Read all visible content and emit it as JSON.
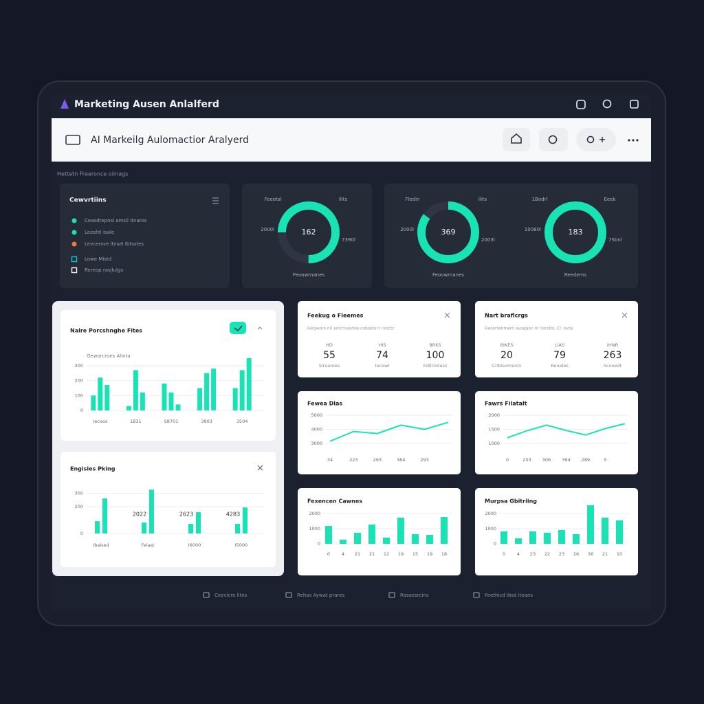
{
  "app": {
    "title": "Marketing Ausen Anlalferd"
  },
  "header": {
    "title": "AI Markeilg Aulomactior Aralyerd"
  },
  "section_label": "Hettetn Freeronce oiinags",
  "list_card": {
    "title": "Cewvrtiins",
    "items": [
      "Ceasdtepnsl amsil Itnatos",
      "Leesfel Isale",
      "Levcersve ltnsel Ibtsstes",
      "Lowe Mistd",
      "Rereop rasjlulgs"
    ]
  },
  "donuts": [
    {
      "value": 162,
      "progress": 75,
      "color": "#19e3b5",
      "labels": [
        "Feeotsl",
        "Ilits",
        "2000l",
        "7390l"
      ],
      "caption": "Feoowrnanes"
    },
    {
      "value": 369,
      "progress": 85,
      "color": "#19e3b5",
      "labels": [
        "Fledin",
        "Ilits",
        "2000l",
        "2003l"
      ],
      "caption": "Feoowrnanes"
    },
    {
      "value": 183,
      "progress": 100,
      "color": "#19e3b5",
      "labels": [
        "1Bodrl",
        "Eeek",
        "10080l",
        "7Sbnl"
      ],
      "caption": "Reedems"
    }
  ],
  "stat_cards": [
    {
      "title": "Feekug o Fleemes",
      "subtitle": "Fecpeors nli anlcrraiorles cobosts ri riioctc",
      "stats": [
        {
          "label": "HD",
          "value": 55,
          "caption": "Siruaroes"
        },
        {
          "label": "HIS",
          "value": 74,
          "caption": "Iecowl"
        },
        {
          "label": "BRKS",
          "value": 100,
          "caption": "Edllciotess"
        }
      ]
    },
    {
      "title": "Nart braflcrgs",
      "subtitle": "Fiesorrenmern avoqaon nl riorotls, Cl. ovos",
      "stats": [
        {
          "label": "BIKES",
          "value": 20,
          "caption": "Cribisoments"
        },
        {
          "label": "LIAS",
          "value": 79,
          "caption": "Reneles"
        },
        {
          "label": "IHNR",
          "value": 263,
          "caption": "Scooedt"
        }
      ]
    }
  ],
  "charts": [
    {
      "type": "bar",
      "title": "Nalre Porcshnghe Fites",
      "subtitle": "Geworcroes Alinta",
      "categories": [
        "Iecoos",
        "1B31",
        "S8701",
        "3903",
        "3504"
      ],
      "ylim": [
        0,
        350
      ],
      "yticks": [
        0,
        100,
        200,
        300
      ],
      "grid": true,
      "series": [
        {
          "color": "#19e3b5",
          "values": [
            100,
            30,
            180,
            150,
            150
          ]
        },
        {
          "color": "#19e3b5",
          "values": [
            220,
            270,
            120,
            250,
            270
          ]
        },
        {
          "color": "#19e3b5",
          "values": [
            170,
            120,
            40,
            280,
            350
          ]
        }
      ]
    },
    {
      "type": "bar",
      "title": "Engisies Pking",
      "categories": [
        "Ibalsed",
        "Felast",
        "I6000",
        "I5000"
      ],
      "annotations": [
        "2022",
        "2623",
        "4283"
      ],
      "ylim": [
        0,
        370
      ],
      "yticks": [
        0,
        200,
        300
      ],
      "grid": true,
      "series": [
        {
          "color": "#19e3b5",
          "values": [
            92,
            82,
            72,
            72
          ]
        },
        {
          "color": "#19e3b5",
          "values": [
            262,
            328,
            159,
            195
          ]
        }
      ]
    },
    {
      "type": "line",
      "title": "Fewea Dlas",
      "categories": [
        "34",
        "223",
        "293",
        "364",
        "293",
        null
      ],
      "values": [
        3150,
        3850,
        3700,
        4300,
        4000,
        4500
      ],
      "color": "#19e3b5",
      "ylim": [
        2800,
        5200
      ],
      "yticks": [
        3000,
        4000,
        5000
      ],
      "grid": true
    },
    {
      "type": "line",
      "title": "Fawrs Filatalt",
      "categories": [
        "0",
        "253",
        "306",
        "394",
        "289",
        "5",
        null
      ],
      "values": [
        1200,
        1450,
        1650,
        1460,
        1300,
        1530,
        1700
      ],
      "color": "#19e3b5",
      "ylim": [
        900,
        2100
      ],
      "yticks": [
        1000,
        1500,
        2000
      ],
      "grid": true
    },
    {
      "type": "bar",
      "title": "Fexencen Cawnes",
      "categories": [
        "0",
        "4",
        "21",
        "21",
        "12",
        "19",
        "15",
        "19",
        "18"
      ],
      "values": [
        1180,
        270,
        730,
        1270,
        410,
        1730,
        640,
        590,
        1770
      ],
      "color": "#19e3b5",
      "ylim": [
        0,
        2000
      ],
      "yticks": [
        0,
        1000,
        2000
      ],
      "grid": true
    },
    {
      "type": "bar",
      "title": "Murpsa Gbitriing",
      "categories": [
        "0",
        "4",
        "23",
        "22",
        "23",
        "26",
        "36",
        "21",
        "10"
      ],
      "values": [
        820,
        360,
        820,
        730,
        910,
        640,
        2550,
        1730,
        1550
      ],
      "color": "#19e3b5",
      "ylim": [
        0,
        2600
      ],
      "yticks": [
        0,
        1000,
        2000
      ],
      "grid": true
    }
  ],
  "footer": [
    "Ceevicre lites",
    "Rehas Aywat prares",
    "Rasaesrcins",
    "Feethicd Ibsd itoans"
  ]
}
